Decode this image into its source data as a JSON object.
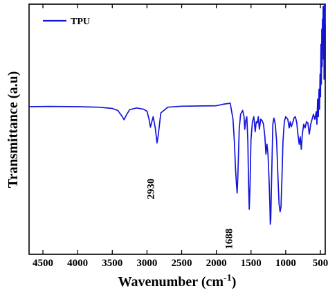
{
  "chart_data": {
    "type": "line",
    "xlabel_base": "Wavenumber (cm",
    "xlabel_sup": "-1",
    "xlabel_end": ")",
    "ylabel": "Transmittance (a.u)",
    "xlim": [
      4700,
      430
    ],
    "x_reversed": true,
    "y_ticks_shown": false,
    "ylim": [
      0,
      100
    ],
    "xticks": [
      4500,
      4000,
      3500,
      3000,
      2500,
      2000,
      1500,
      1000,
      500
    ],
    "xtick_labels": [
      "4500",
      "4000",
      "3500",
      "3000",
      "2500",
      "2000",
      "1500",
      "1000",
      "500"
    ],
    "legend": {
      "position": "top-left",
      "entries": [
        {
          "label": "TPU",
          "color": "#1414d9"
        }
      ]
    },
    "annotations": [
      {
        "text": "2930",
        "x": 2900,
        "y": 22,
        "rotation": -90
      },
      {
        "text": "1688",
        "x": 1770,
        "y": 2,
        "rotation": -90
      }
    ],
    "series": [
      {
        "name": "TPU",
        "color": "#1414d9",
        "points": [
          [
            4700,
            59.0
          ],
          [
            4400,
            59.1
          ],
          [
            4000,
            59.0
          ],
          [
            3700,
            58.8
          ],
          [
            3500,
            58.3
          ],
          [
            3420,
            57.5
          ],
          [
            3360,
            55.2
          ],
          [
            3330,
            53.8
          ],
          [
            3300,
            55.5
          ],
          [
            3250,
            57.8
          ],
          [
            3150,
            58.5
          ],
          [
            3050,
            58.0
          ],
          [
            3000,
            57.2
          ],
          [
            2970,
            54.0
          ],
          [
            2950,
            50.8
          ],
          [
            2935,
            52.5
          ],
          [
            2910,
            55.0
          ],
          [
            2880,
            50.5
          ],
          [
            2855,
            44.5
          ],
          [
            2840,
            47.0
          ],
          [
            2800,
            56.5
          ],
          [
            2700,
            58.8
          ],
          [
            2500,
            59.2
          ],
          [
            2200,
            59.3
          ],
          [
            2000,
            59.4
          ],
          [
            1900,
            60.0
          ],
          [
            1800,
            60.4
          ],
          [
            1760,
            54.0
          ],
          [
            1740,
            45.0
          ],
          [
            1725,
            35.0
          ],
          [
            1710,
            28.0
          ],
          [
            1700,
            24.5
          ],
          [
            1690,
            31.0
          ],
          [
            1670,
            50.0
          ],
          [
            1650,
            56.0
          ],
          [
            1620,
            57.5
          ],
          [
            1600,
            55.0
          ],
          [
            1590,
            50.0
          ],
          [
            1575,
            53.5
          ],
          [
            1560,
            55.0
          ],
          [
            1545,
            45.0
          ],
          [
            1535,
            28.0
          ],
          [
            1525,
            18.0
          ],
          [
            1515,
            26.0
          ],
          [
            1500,
            46.0
          ],
          [
            1480,
            53.0
          ],
          [
            1460,
            55.0
          ],
          [
            1440,
            49.0
          ],
          [
            1425,
            53.0
          ],
          [
            1410,
            52.5
          ],
          [
            1395,
            55.0
          ],
          [
            1380,
            50.0
          ],
          [
            1360,
            54.0
          ],
          [
            1340,
            53.5
          ],
          [
            1320,
            52.0
          ],
          [
            1300,
            47.0
          ],
          [
            1285,
            40.0
          ],
          [
            1270,
            44.0
          ],
          [
            1255,
            40.0
          ],
          [
            1240,
            30.0
          ],
          [
            1228,
            20.0
          ],
          [
            1222,
            12.0
          ],
          [
            1215,
            14.0
          ],
          [
            1200,
            34.0
          ],
          [
            1185,
            52.0
          ],
          [
            1170,
            54.5
          ],
          [
            1150,
            52.0
          ],
          [
            1130,
            45.0
          ],
          [
            1110,
            30.0
          ],
          [
            1095,
            20.0
          ],
          [
            1080,
            17.0
          ],
          [
            1068,
            19.0
          ],
          [
            1055,
            30.0
          ],
          [
            1040,
            45.0
          ],
          [
            1020,
            53.0
          ],
          [
            1000,
            55.0
          ],
          [
            970,
            54.0
          ],
          [
            950,
            50.5
          ],
          [
            935,
            53.0
          ],
          [
            920,
            51.0
          ],
          [
            900,
            52.5
          ],
          [
            880,
            54.5
          ],
          [
            860,
            55.0
          ],
          [
            840,
            52.5
          ],
          [
            820,
            47.0
          ],
          [
            805,
            44.0
          ],
          [
            790,
            47.0
          ],
          [
            775,
            42.0
          ],
          [
            760,
            48.0
          ],
          [
            740,
            52.0
          ],
          [
            720,
            50.5
          ],
          [
            700,
            53.0
          ],
          [
            680,
            52.5
          ],
          [
            660,
            48.0
          ],
          [
            640,
            52.0
          ],
          [
            620,
            54.0
          ],
          [
            600,
            56.0
          ],
          [
            580,
            54.0
          ],
          [
            560,
            57.0
          ],
          [
            550,
            52.0
          ],
          [
            540,
            62.0
          ],
          [
            530,
            55.0
          ],
          [
            520,
            66.0
          ],
          [
            512,
            58.0
          ],
          [
            505,
            72.0
          ],
          [
            498,
            63.0
          ],
          [
            492,
            84.0
          ],
          [
            486,
            68.0
          ],
          [
            480,
            90.0
          ],
          [
            475,
            75.0
          ],
          [
            470,
            94.0
          ],
          [
            465,
            85.0
          ],
          [
            460,
            99.0
          ],
          [
            455,
            78.0
          ],
          [
            450,
            96.0
          ],
          [
            447,
            70.0
          ],
          [
            444,
            100.0
          ],
          [
            441,
            86.0
          ],
          [
            438,
            98.0
          ],
          [
            435,
            92.0
          ],
          [
            432,
            100.0
          ]
        ]
      }
    ]
  }
}
